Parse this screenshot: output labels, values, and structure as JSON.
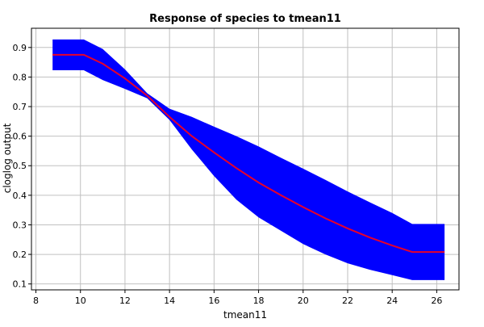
{
  "chart_data": {
    "type": "line",
    "title": "Response of species to tmean11",
    "xlabel": "tmean11",
    "ylabel": "cloglog output",
    "xlim": [
      7.8,
      27.0
    ],
    "ylim": [
      0.08,
      0.965
    ],
    "xticks": [
      8,
      10,
      12,
      14,
      16,
      18,
      20,
      22,
      24,
      26
    ],
    "yticks": [
      0.1,
      0.2,
      0.3,
      0.4,
      0.5,
      0.6,
      0.7,
      0.8,
      0.9
    ],
    "grid": true,
    "series": [
      {
        "role": "mean",
        "color": "#e8002a",
        "x": [
          8.75,
          10.15,
          11,
          12,
          13,
          14,
          15,
          16,
          17,
          18,
          19,
          20,
          21,
          22,
          23,
          24,
          24.9,
          26.35
        ],
        "y": [
          0.875,
          0.875,
          0.845,
          0.795,
          0.737,
          0.665,
          0.6,
          0.545,
          0.492,
          0.443,
          0.4,
          0.36,
          0.322,
          0.288,
          0.257,
          0.23,
          0.208,
          0.208
        ]
      },
      {
        "role": "upper",
        "color": "#0000ff",
        "x": [
          8.75,
          10.15,
          11,
          12,
          13,
          14,
          15,
          16,
          17,
          18,
          19,
          20,
          21,
          22,
          23,
          24,
          24.9,
          26.35
        ],
        "y": [
          0.927,
          0.927,
          0.895,
          0.826,
          0.745,
          0.693,
          0.665,
          0.632,
          0.6,
          0.565,
          0.527,
          0.49,
          0.452,
          0.413,
          0.376,
          0.34,
          0.303,
          0.303
        ]
      },
      {
        "role": "lower",
        "color": "#0000ff",
        "x": [
          8.75,
          10.15,
          11,
          12,
          13,
          14,
          15,
          16,
          17,
          18,
          19,
          20,
          21,
          22,
          23,
          24,
          24.9,
          26.35
        ],
        "y": [
          0.823,
          0.823,
          0.79,
          0.76,
          0.728,
          0.655,
          0.555,
          0.465,
          0.385,
          0.325,
          0.28,
          0.235,
          0.2,
          0.17,
          0.148,
          0.13,
          0.113,
          0.113
        ]
      }
    ]
  }
}
